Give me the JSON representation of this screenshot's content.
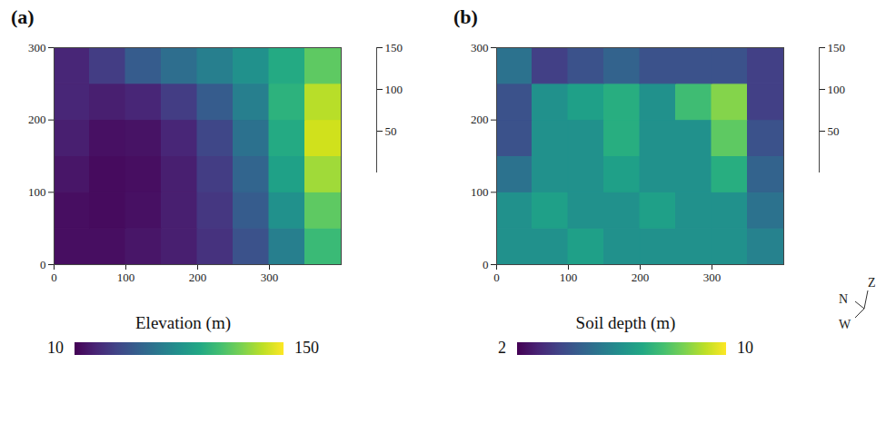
{
  "chart_data": [
    {
      "type": "heatmap",
      "panel_label": "(a)",
      "colorbar_label": "Elevation (m)",
      "color": "viridis",
      "x": [
        25,
        75,
        125,
        175,
        225,
        275,
        325,
        375
      ],
      "y": [
        25,
        75,
        125,
        175,
        225,
        275
      ],
      "values": [
        [
          15,
          15,
          18,
          22,
          30,
          45,
          70,
          105
        ],
        [
          15,
          14,
          16,
          22,
          32,
          50,
          80,
          115
        ],
        [
          18,
          14,
          15,
          22,
          35,
          55,
          90,
          130
        ],
        [
          22,
          16,
          17,
          25,
          40,
          62,
          95,
          140
        ],
        [
          25,
          22,
          25,
          35,
          50,
          70,
          100,
          135
        ],
        [
          25,
          35,
          50,
          60,
          70,
          80,
          95,
          115
        ]
      ],
      "xlim": [
        0,
        400
      ],
      "ylim": [
        0,
        300
      ],
      "xticks": [
        0,
        100,
        200,
        300
      ],
      "yticks": [
        0,
        100,
        200,
        300
      ],
      "zlim": [
        0,
        150
      ],
      "zticks": [
        50,
        100,
        150
      ],
      "color_range": [
        10,
        150
      ],
      "color_ticks": [
        10,
        150
      ]
    },
    {
      "type": "heatmap",
      "panel_label": "(b)",
      "colorbar_label": "Soil depth (m)",
      "color": "viridis",
      "x": [
        25,
        75,
        125,
        175,
        225,
        275,
        325,
        375
      ],
      "y": [
        25,
        75,
        125,
        175,
        225,
        275
      ],
      "values": [
        [
          6,
          6,
          6.5,
          6,
          6,
          6,
          6,
          5.5
        ],
        [
          6,
          6.5,
          6,
          6,
          6.5,
          6,
          6,
          5
        ],
        [
          5,
          6,
          6,
          6.5,
          6,
          6,
          7,
          4.5
        ],
        [
          4,
          6,
          6,
          7,
          6,
          6,
          8,
          4
        ],
        [
          4,
          6,
          6.5,
          7,
          6,
          7.5,
          8.5,
          3.5
        ],
        [
          5,
          3.5,
          4,
          4.5,
          4,
          4,
          4,
          3.5
        ]
      ],
      "xlim": [
        0,
        400
      ],
      "ylim": [
        0,
        300
      ],
      "xticks": [
        0,
        100,
        200,
        300
      ],
      "yticks": [
        0,
        100,
        200,
        300
      ],
      "zlim": [
        0,
        150
      ],
      "zticks": [
        50,
        100,
        150
      ],
      "color_range": [
        2,
        10
      ],
      "color_ticks": [
        2,
        10
      ]
    }
  ],
  "compass": [
    "N",
    "Z",
    "W"
  ]
}
